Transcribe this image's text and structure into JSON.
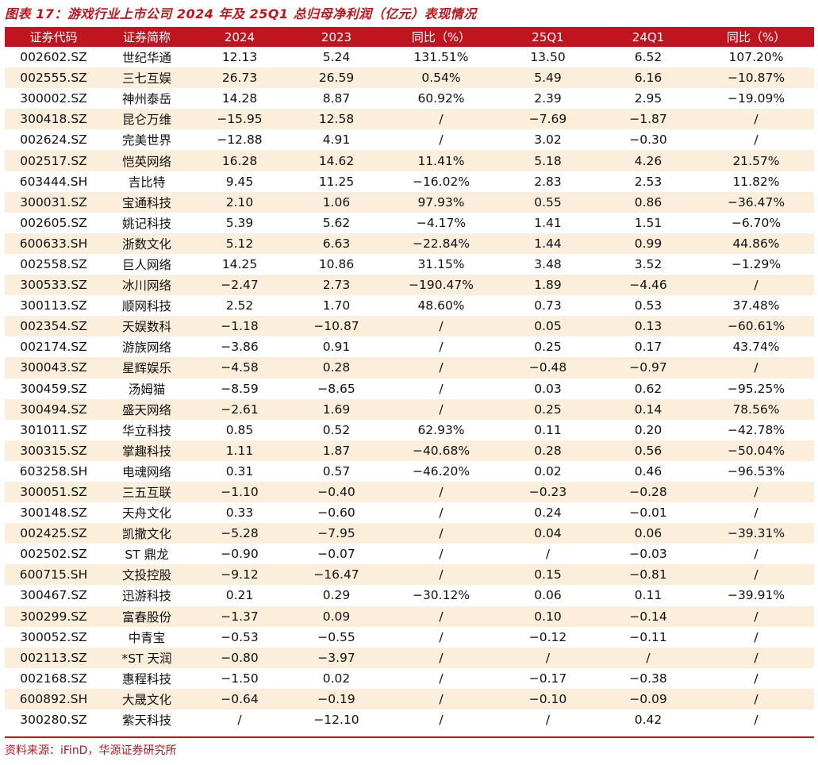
{
  "title": "图表 17：游戏行业上市公司 2024 年及 25Q1 总归母净利润（亿元）表现情况",
  "headers": [
    "证券代码",
    "证券简称",
    "2024",
    "2023",
    "同比（%）",
    "25Q1",
    "24Q1",
    "同比（%）"
  ],
  "rows": [
    [
      "002602.SZ",
      "世纪华通",
      "12.13",
      "5.24",
      "131.51%",
      "13.50",
      "6.52",
      "107.20%"
    ],
    [
      "002555.SZ",
      "三七互娱",
      "26.73",
      "26.59",
      "0.54%",
      "5.49",
      "6.16",
      "−10.87%"
    ],
    [
      "300002.SZ",
      "神州泰岳",
      "14.28",
      "8.87",
      "60.92%",
      "2.39",
      "2.95",
      "−19.09%"
    ],
    [
      "300418.SZ",
      "昆仑万维",
      "−15.95",
      "12.58",
      "/",
      "−7.69",
      "−1.87",
      "/"
    ],
    [
      "002624.SZ",
      "完美世界",
      "−12.88",
      "4.91",
      "/",
      "3.02",
      "−0.30",
      "/"
    ],
    [
      "002517.SZ",
      "恺英网络",
      "16.28",
      "14.62",
      "11.41%",
      "5.18",
      "4.26",
      "21.57%"
    ],
    [
      "603444.SH",
      "吉比特",
      "9.45",
      "11.25",
      "−16.02%",
      "2.83",
      "2.53",
      "11.82%"
    ],
    [
      "300031.SZ",
      "宝通科技",
      "2.10",
      "1.06",
      "97.93%",
      "0.55",
      "0.86",
      "−36.47%"
    ],
    [
      "002605.SZ",
      "姚记科技",
      "5.39",
      "5.62",
      "−4.17%",
      "1.41",
      "1.51",
      "−6.70%"
    ],
    [
      "600633.SH",
      "浙数文化",
      "5.12",
      "6.63",
      "−22.84%",
      "1.44",
      "0.99",
      "44.86%"
    ],
    [
      "002558.SZ",
      "巨人网络",
      "14.25",
      "10.86",
      "31.15%",
      "3.48",
      "3.52",
      "−1.29%"
    ],
    [
      "300533.SZ",
      "冰川网络",
      "−2.47",
      "2.73",
      "−190.47%",
      "1.89",
      "−4.46",
      "/"
    ],
    [
      "300113.SZ",
      "顺网科技",
      "2.52",
      "1.70",
      "48.60%",
      "0.73",
      "0.53",
      "37.48%"
    ],
    [
      "002354.SZ",
      "天娱数科",
      "−1.18",
      "−10.87",
      "/",
      "0.05",
      "0.13",
      "−60.61%"
    ],
    [
      "002174.SZ",
      "游族网络",
      "−3.86",
      "0.91",
      "/",
      "0.25",
      "0.17",
      "43.74%"
    ],
    [
      "300043.SZ",
      "星辉娱乐",
      "−4.58",
      "0.28",
      "/",
      "−0.48",
      "−0.97",
      "/"
    ],
    [
      "300459.SZ",
      "汤姆猫",
      "−8.59",
      "−8.65",
      "/",
      "0.03",
      "0.62",
      "−95.25%"
    ],
    [
      "300494.SZ",
      "盛天网络",
      "−2.61",
      "1.69",
      "/",
      "0.25",
      "0.14",
      "78.56%"
    ],
    [
      "301011.SZ",
      "华立科技",
      "0.85",
      "0.52",
      "62.93%",
      "0.11",
      "0.20",
      "−42.78%"
    ],
    [
      "300315.SZ",
      "掌趣科技",
      "1.11",
      "1.87",
      "−40.68%",
      "0.28",
      "0.56",
      "−50.04%"
    ],
    [
      "603258.SH",
      "电魂网络",
      "0.31",
      "0.57",
      "−46.20%",
      "0.02",
      "0.46",
      "−96.53%"
    ],
    [
      "300051.SZ",
      "三五互联",
      "−1.10",
      "−0.40",
      "/",
      "−0.23",
      "−0.28",
      "/"
    ],
    [
      "300148.SZ",
      "天舟文化",
      "0.33",
      "−0.60",
      "/",
      "0.24",
      "−0.01",
      "/"
    ],
    [
      "002425.SZ",
      "凯撒文化",
      "−5.28",
      "−7.95",
      "/",
      "0.04",
      "0.06",
      "−39.31%"
    ],
    [
      "002502.SZ",
      "ST 鼎龙",
      "−0.90",
      "−0.07",
      "/",
      "/",
      "−0.03",
      "/"
    ],
    [
      "600715.SH",
      "文投控股",
      "−9.12",
      "−16.47",
      "/",
      "0.15",
      "−0.81",
      "/"
    ],
    [
      "300467.SZ",
      "迅游科技",
      "0.21",
      "0.29",
      "−30.12%",
      "0.06",
      "0.11",
      "−39.91%"
    ],
    [
      "300299.SZ",
      "富春股份",
      "−1.37",
      "0.09",
      "/",
      "0.10",
      "−0.14",
      "/"
    ],
    [
      "300052.SZ",
      "中青宝",
      "−0.53",
      "−0.55",
      "/",
      "−0.12",
      "−0.11",
      "/"
    ],
    [
      "002113.SZ",
      "*ST 天润",
      "−0.80",
      "−3.97",
      "/",
      "/",
      "/",
      "/"
    ],
    [
      "002168.SZ",
      "惠程科技",
      "−1.50",
      "0.02",
      "/",
      "−0.17",
      "−0.38",
      "/"
    ],
    [
      "600892.SH",
      "大晟文化",
      "−0.64",
      "−0.19",
      "/",
      "−0.10",
      "−0.09",
      "/"
    ],
    [
      "300280.SZ",
      "紫天科技",
      "/",
      "−12.10",
      "/",
      "/",
      "0.42",
      "/"
    ]
  ],
  "source": "资料来源：iFinD，华源证券研究所",
  "colors": {
    "accent": "#c0151e",
    "stripe": "#fbeedb"
  }
}
